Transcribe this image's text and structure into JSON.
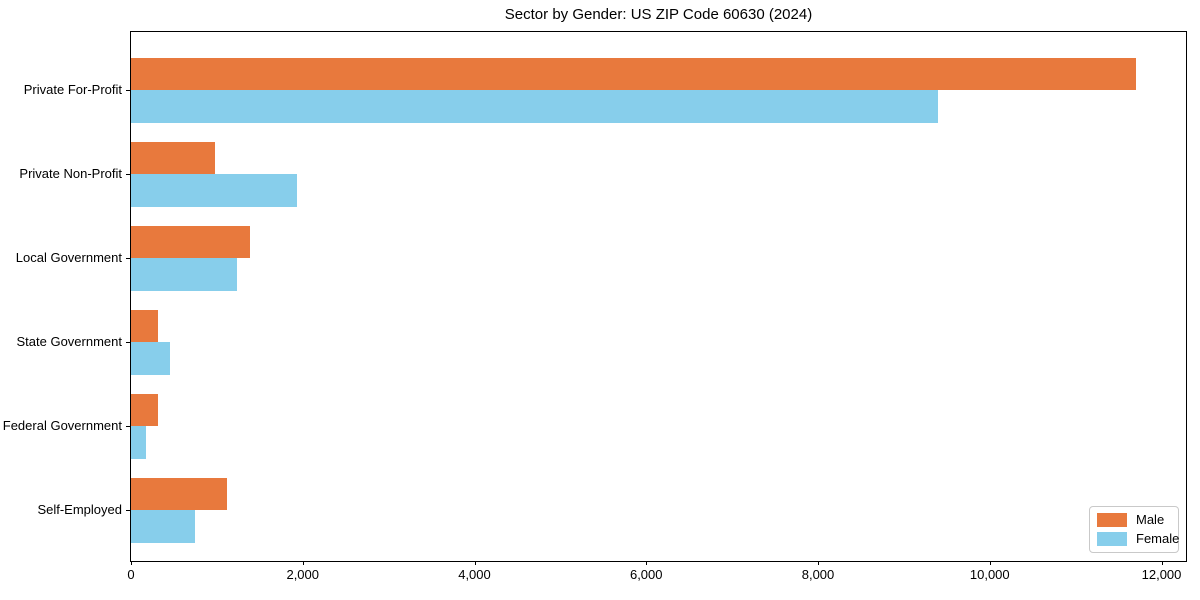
{
  "chart_data": {
    "type": "bar",
    "orientation": "horizontal",
    "title": "Sector by Gender: US ZIP Code 60630 (2024)",
    "categories": [
      "Private For-Profit",
      "Private Non-Profit",
      "Local Government",
      "State Government",
      "Federal Government",
      "Self-Employed"
    ],
    "series": [
      {
        "name": "Male",
        "color": "#E8793D",
        "values": [
          11700,
          980,
          1380,
          310,
          320,
          1120
        ]
      },
      {
        "name": "Female",
        "color": "#87CEEB",
        "values": [
          9400,
          1930,
          1240,
          450,
          170,
          750
        ]
      }
    ],
    "xlabel": "",
    "ylabel": "",
    "xlim": [
      0,
      12285
    ],
    "xticks": [
      0,
      2000,
      4000,
      6000,
      8000,
      10000,
      12000
    ],
    "xtick_labels": [
      "0",
      "2,000",
      "4,000",
      "6,000",
      "8,000",
      "10,000",
      "12,000"
    ],
    "grid": false,
    "legend": {
      "position": "lower right"
    },
    "colors": {
      "spine": "#000000",
      "background": "#ffffff"
    }
  }
}
